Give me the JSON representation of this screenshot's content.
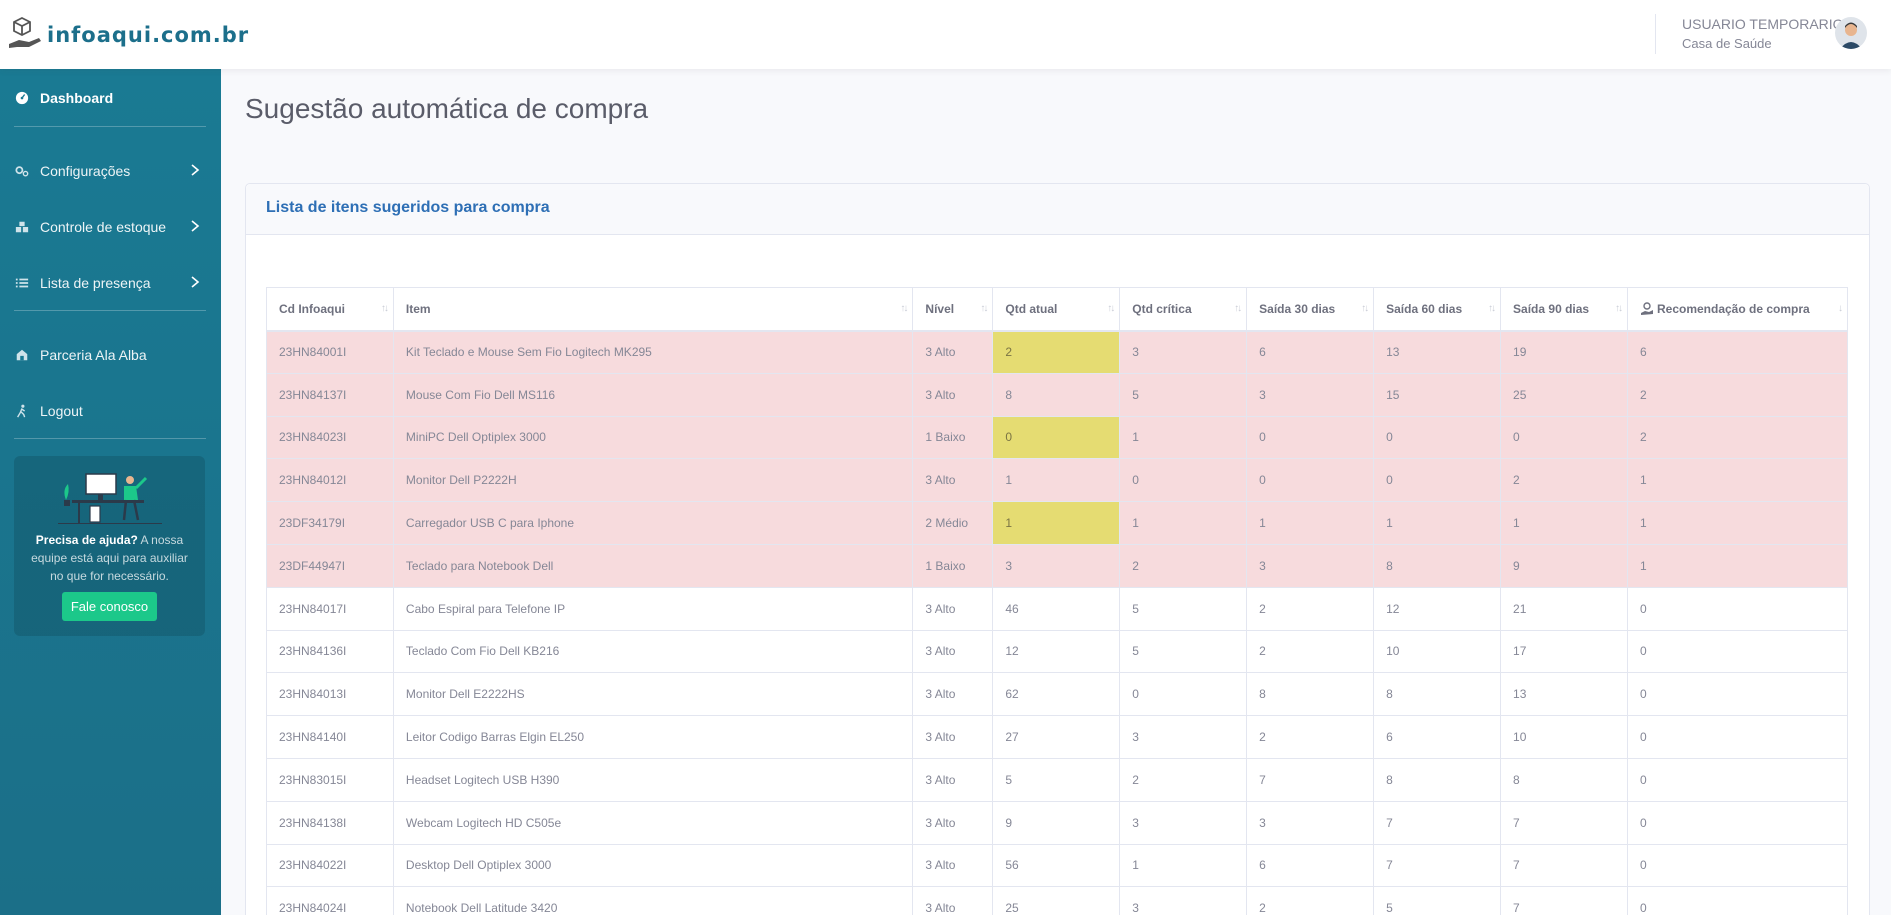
{
  "brand": {
    "name": "infoaqui.com.br"
  },
  "user": {
    "name": "USUARIO TEMPORARIO",
    "org": "Casa de Saúde"
  },
  "sidebar": {
    "items": [
      {
        "label": "Dashboard",
        "icon": "dashboard-icon"
      },
      {
        "label": "Configurações",
        "icon": "cogs-icon"
      },
      {
        "label": "Controle de estoque",
        "icon": "boxes-icon"
      },
      {
        "label": "Lista de presença",
        "icon": "list-icon"
      },
      {
        "label": "Parceria Ala Alba",
        "icon": "hands-icon"
      },
      {
        "label": "Logout",
        "icon": "walking-icon"
      }
    ],
    "help": {
      "bold": "Precisa de ajuda?",
      "text": " A nossa equipe está aqui para auxiliar no que for necessário.",
      "button": "Fale conosco"
    }
  },
  "page": {
    "title": "Sugestão automática de compra"
  },
  "card": {
    "title": "Lista de itens sugeridos para compra"
  },
  "table": {
    "columns": [
      "Cd Infoaqui",
      "Item",
      "Nível",
      "Qtd atual",
      "Qtd crítica",
      "Saída 30 dias",
      "Saída 60 dias",
      "Saída 90 dias",
      "Recomendação de compra"
    ],
    "rows": [
      {
        "cells": [
          "23HN84001I",
          "Kit Teclado e Mouse Sem Fio Logitech MK295",
          "3 Alto",
          "2",
          "3",
          "6",
          "13",
          "19",
          "6"
        ],
        "alert": true,
        "warn_qty": true
      },
      {
        "cells": [
          "23HN84137I",
          "Mouse Com Fio Dell MS116",
          "3 Alto",
          "8",
          "5",
          "3",
          "15",
          "25",
          "2"
        ],
        "alert": true,
        "warn_qty": false
      },
      {
        "cells": [
          "23HN84023I",
          "MiniPC Dell Optiplex 3000",
          "1 Baixo",
          "0",
          "1",
          "0",
          "0",
          "0",
          "2"
        ],
        "alert": true,
        "warn_qty": true
      },
      {
        "cells": [
          "23HN84012I",
          "Monitor Dell P2222H",
          "3 Alto",
          "1",
          "0",
          "0",
          "0",
          "2",
          "1"
        ],
        "alert": true,
        "warn_qty": false
      },
      {
        "cells": [
          "23DF34179I",
          "Carregador USB C para Iphone",
          "2 Médio",
          "1",
          "1",
          "1",
          "1",
          "1",
          "1"
        ],
        "alert": true,
        "warn_qty": true
      },
      {
        "cells": [
          "23DF44947I",
          "Teclado para Notebook Dell",
          "1 Baixo",
          "3",
          "2",
          "3",
          "8",
          "9",
          "1"
        ],
        "alert": true,
        "warn_qty": false
      },
      {
        "cells": [
          "23HN84017I",
          "Cabo Espiral para Telefone IP",
          "3 Alto",
          "46",
          "5",
          "2",
          "12",
          "21",
          "0"
        ],
        "alert": false,
        "warn_qty": false
      },
      {
        "cells": [
          "23HN84136I",
          "Teclado Com Fio Dell KB216",
          "3 Alto",
          "12",
          "5",
          "2",
          "10",
          "17",
          "0"
        ],
        "alert": false,
        "warn_qty": false
      },
      {
        "cells": [
          "23HN84013I",
          "Monitor Dell E2222HS",
          "3 Alto",
          "62",
          "0",
          "8",
          "8",
          "13",
          "0"
        ],
        "alert": false,
        "warn_qty": false
      },
      {
        "cells": [
          "23HN84140I",
          "Leitor Codigo Barras Elgin EL250",
          "3 Alto",
          "27",
          "3",
          "2",
          "6",
          "10",
          "0"
        ],
        "alert": false,
        "warn_qty": false
      },
      {
        "cells": [
          "23HN83015I",
          "Headset Logitech USB H390",
          "3 Alto",
          "5",
          "2",
          "7",
          "8",
          "8",
          "0"
        ],
        "alert": false,
        "warn_qty": false
      },
      {
        "cells": [
          "23HN84138I",
          "Webcam Logitech HD C505e",
          "3 Alto",
          "9",
          "3",
          "3",
          "7",
          "7",
          "0"
        ],
        "alert": false,
        "warn_qty": false
      },
      {
        "cells": [
          "23HN84022I",
          "Desktop Dell Optiplex 3000",
          "3 Alto",
          "56",
          "1",
          "6",
          "7",
          "7",
          "0"
        ],
        "alert": false,
        "warn_qty": false
      },
      {
        "cells": [
          "23HN84024I",
          "Notebook Dell Latitude 3420",
          "3 Alto",
          "25",
          "3",
          "2",
          "5",
          "7",
          "0"
        ],
        "alert": false,
        "warn_qty": false
      }
    ]
  },
  "colors": {
    "sidebar": "#1a7a93",
    "alert_row": "#f7dbdd",
    "warn_cell": "#e5dc72",
    "accent": "#2e6fb5",
    "button": "#1cc88a"
  }
}
